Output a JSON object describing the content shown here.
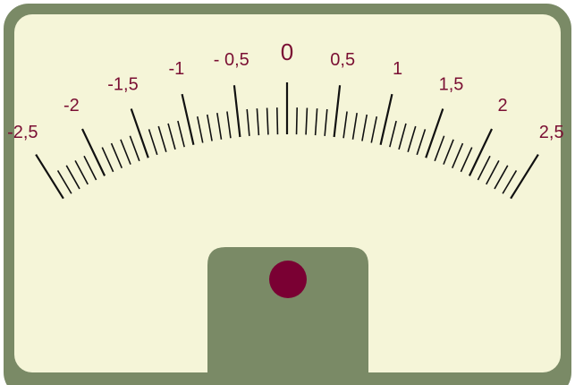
{
  "colors": {
    "frame": "#7a8a66",
    "face": "#f5f5d8",
    "ticks": "#111111",
    "labels": "#7a0f33",
    "indicator": "#7a0033"
  },
  "scale": {
    "min": -2.5,
    "max": 2.5,
    "labeled_values": [
      -2.5,
      -2,
      -1.5,
      -1,
      -0.5,
      0,
      0.5,
      1,
      1.5,
      2,
      2.5
    ],
    "labels": [
      "-2,5",
      "-2",
      "-1,5",
      "-1",
      "- 0,5",
      "0",
      "0,5",
      "1",
      "1,5",
      "2",
      "2,5"
    ],
    "minor_step": 0.1
  },
  "indicator": {
    "name": "pointer-pivot-dot"
  }
}
